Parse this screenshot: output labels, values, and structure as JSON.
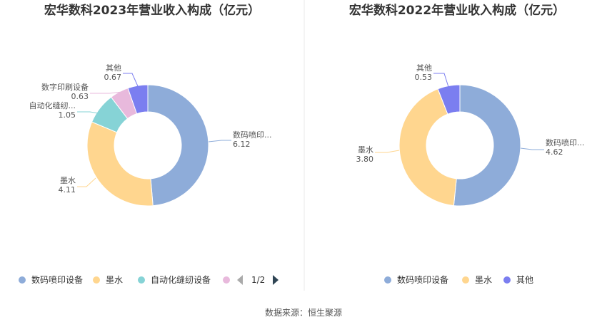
{
  "chart_data": [
    {
      "type": "pie",
      "title": "宏华数科2023年营业收入构成（亿元）",
      "series": [
        {
          "name": "数码喷印设备",
          "label": "数码喷印...",
          "value": 6.12,
          "display": "6.12",
          "color": "#8eacd9"
        },
        {
          "name": "墨水",
          "label": "墨水",
          "value": 4.11,
          "display": "4.11",
          "color": "#ffd68f"
        },
        {
          "name": "自动化缝纫设备",
          "label": "自动化缝纫...",
          "value": 1.05,
          "display": "1.05",
          "color": "#86d3d6"
        },
        {
          "name": "数字印刷设备",
          "label": "数字印刷设备",
          "value": 0.63,
          "display": "0.63",
          "color": "#e8b9dc"
        },
        {
          "name": "其他",
          "label": "其他",
          "value": 0.67,
          "display": "0.67",
          "color": "#7b7ef0"
        }
      ],
      "legend": {
        "placement": "bottom",
        "visible_items": [
          "数码喷印设备",
          "墨水",
          "自动化缝纫设备",
          ""
        ],
        "pager": "1/2"
      }
    },
    {
      "type": "pie",
      "title": "宏华数科2022年营业收入构成（亿元）",
      "series": [
        {
          "name": "数码喷印设备",
          "label": "数码喷印...",
          "value": 4.62,
          "display": "4.62",
          "color": "#8eacd9"
        },
        {
          "name": "墨水",
          "label": "墨水",
          "value": 3.8,
          "display": "3.80",
          "color": "#ffd68f"
        },
        {
          "name": "其他",
          "label": "其他",
          "value": 0.53,
          "display": "0.53",
          "color": "#7b7ef0"
        }
      ],
      "legend": {
        "placement": "bottom",
        "visible_items": [
          "数码喷印设备",
          "墨水",
          "其他"
        ]
      }
    }
  ],
  "source": "数据来源：恒生聚源"
}
